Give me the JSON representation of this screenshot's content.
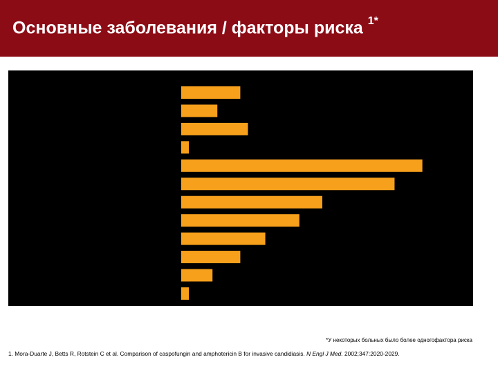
{
  "header": {
    "title": "Основные заболевания / факторы риска",
    "title_superscript": "1*"
  },
  "chart_data": {
    "type": "barh",
    "categories": [
      null,
      null,
      null,
      null,
      null,
      null,
      null,
      null,
      null,
      null,
      null,
      null
    ],
    "values": [
      8.5,
      5.2,
      9.6,
      1.1,
      34.7,
      30.7,
      20.3,
      17.0,
      12.1,
      8.5,
      4.5,
      1.1
    ],
    "color": "#f7a01c",
    "background": "#000000",
    "xlim": [
      0,
      42
    ]
  },
  "footnote": "*У некоторых больных было более одногофактора риска",
  "reference": {
    "text": "1. Mora-Duarte J, Betts R, Rotstein C et al. Comparison of caspofungin and amphotericin B for invasive candidiasis. ",
    "journal": "N Engl J Med.",
    "citation": " 2002;347:2020-2029."
  }
}
